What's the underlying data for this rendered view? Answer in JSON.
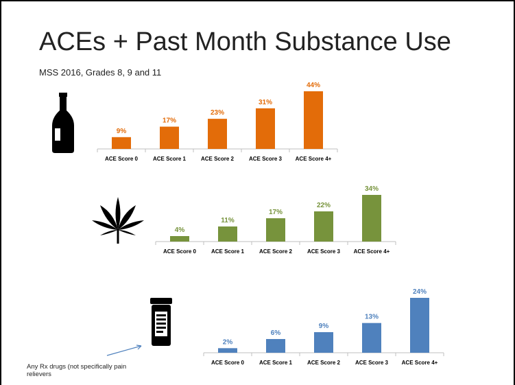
{
  "slide": {
    "title": "ACEs + Past Month Substance Use",
    "subtitle": "MSS 2016, Grades 8, 9 and 11",
    "note": "Any Rx drugs (not specifically pain relievers"
  },
  "icons": [
    "bottle-icon",
    "cannabis-leaf-icon",
    "pill-bottle-icon"
  ],
  "colors": {
    "alcohol": "#E36C09",
    "marijuana": "#77933C",
    "rx": "#4F81BD"
  },
  "chart_data": [
    {
      "type": "bar",
      "categories": [
        "ACE Score 0",
        "ACE Score 1",
        "ACE Score 2",
        "ACE Score 3",
        "ACE Score 4+"
      ],
      "values": [
        9,
        17,
        23,
        31,
        44
      ],
      "data_labels": [
        "9%",
        "17%",
        "23%",
        "31%",
        "44%"
      ],
      "ylim": [
        0,
        44
      ],
      "grid": false,
      "legend": "none",
      "color": "#E36C09"
    },
    {
      "type": "bar",
      "categories": [
        "ACE Score 0",
        "ACE Score 1",
        "ACE Score 2",
        "ACE Score 3",
        "ACE Score 4+"
      ],
      "values": [
        4,
        11,
        17,
        22,
        34
      ],
      "data_labels": [
        "4%",
        "11%",
        "17%",
        "22%",
        "34%"
      ],
      "ylim": [
        0,
        34
      ],
      "grid": false,
      "legend": "none",
      "color": "#77933C"
    },
    {
      "type": "bar",
      "categories": [
        "ACE Score 0",
        "ACE Score 1",
        "ACE Score 2",
        "ACE Score 3",
        "ACE Score 4+"
      ],
      "values": [
        2,
        6,
        9,
        13,
        24
      ],
      "data_labels": [
        "2%",
        "6%",
        "9%",
        "13%",
        "24%"
      ],
      "ylim": [
        0,
        24
      ],
      "grid": false,
      "legend": "none",
      "color": "#4F81BD"
    }
  ]
}
